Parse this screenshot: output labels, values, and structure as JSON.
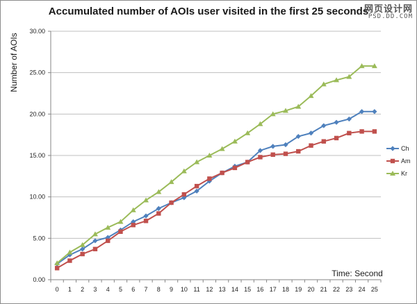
{
  "watermark": {
    "line1": "网页设计网",
    "line2": "PSD.DD.COM"
  },
  "chart_data": {
    "type": "line",
    "title": "Accumulated number of AOIs user visited in the first 25 seconds",
    "xlabel": "Time: Second",
    "ylabel": "Number of AOIs",
    "x": [
      0,
      1,
      2,
      3,
      4,
      5,
      6,
      7,
      8,
      9,
      10,
      11,
      12,
      13,
      14,
      15,
      16,
      17,
      18,
      19,
      20,
      21,
      22,
      23,
      24,
      25
    ],
    "ylim": [
      0,
      30
    ],
    "yticks": [
      "0.00",
      "5.00",
      "10.00",
      "15.00",
      "20.00",
      "25.00",
      "30.00"
    ],
    "grid": "horizontal",
    "legend": "right",
    "series": [
      {
        "name": "Ch",
        "color": "#4f81bd",
        "marker": "diamond",
        "values": [
          1.9,
          3.0,
          3.7,
          4.7,
          5.1,
          6.0,
          7.0,
          7.7,
          8.6,
          9.3,
          9.9,
          10.7,
          11.9,
          12.9,
          13.7,
          14.2,
          15.6,
          16.1,
          16.3,
          17.3,
          17.7,
          18.6,
          19.0,
          19.4,
          20.3,
          20.3
        ]
      },
      {
        "name": "Am",
        "color": "#c0504d",
        "marker": "square",
        "values": [
          1.4,
          2.3,
          3.1,
          3.7,
          4.7,
          5.8,
          6.6,
          7.1,
          8.0,
          9.3,
          10.3,
          11.3,
          12.2,
          12.9,
          13.5,
          14.2,
          14.8,
          15.1,
          15.2,
          15.5,
          16.2,
          16.7,
          17.1,
          17.7,
          17.9,
          17.9
        ]
      },
      {
        "name": "Kr",
        "color": "#9bbb59",
        "marker": "triangle",
        "values": [
          2.0,
          3.3,
          4.2,
          5.5,
          6.3,
          7.0,
          8.4,
          9.6,
          10.6,
          11.8,
          13.1,
          14.2,
          15.0,
          15.8,
          16.7,
          17.7,
          18.8,
          20.0,
          20.4,
          20.9,
          22.2,
          23.6,
          24.1,
          24.5,
          25.8,
          25.8
        ]
      }
    ]
  }
}
